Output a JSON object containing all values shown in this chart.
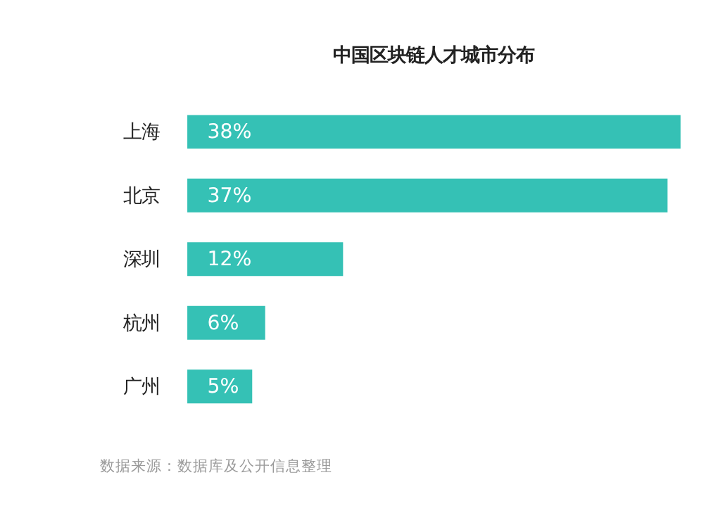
{
  "chart_data": {
    "type": "bar",
    "orientation": "horizontal",
    "title": "中国区块链人才城市分布",
    "categories": [
      "上海",
      "北京",
      "深圳",
      "杭州",
      "广州"
    ],
    "values": [
      38,
      37,
      12,
      6,
      5
    ],
    "value_labels": [
      "38%",
      "37%",
      "12%",
      "6%",
      "5%"
    ],
    "color": "#35c1b5",
    "grid": false,
    "annotations": [
      "数据来源：数据库及公开信息整理"
    ]
  }
}
